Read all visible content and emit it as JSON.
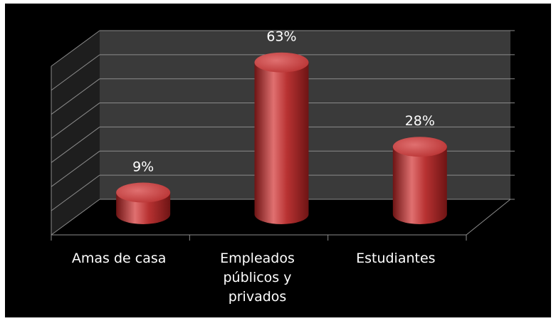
{
  "chart_data": {
    "type": "bar",
    "style": "3d-cylinder",
    "categories": [
      "Amas de casa",
      "Empleados públicos y privados",
      "Estudiantes"
    ],
    "category_label_lines": [
      [
        "Amas de casa"
      ],
      [
        "Empleados",
        "públicos y",
        "privados"
      ],
      [
        "Estudiantes"
      ]
    ],
    "values": [
      9,
      63,
      28
    ],
    "data_labels": [
      "9%",
      "63%",
      "28%"
    ],
    "title": "",
    "xlabel": "",
    "ylabel": "",
    "ylim": [
      0,
      70
    ],
    "grid": true,
    "legend": "none",
    "colors": {
      "background": "#000000",
      "wall": "#3a3a3a",
      "floor": "#000000",
      "gridline": "#8c8c8c",
      "bar": "#b83232",
      "bar_dark": "#6e1414",
      "bar_light": "#e07070",
      "text": "#ffffff"
    }
  }
}
